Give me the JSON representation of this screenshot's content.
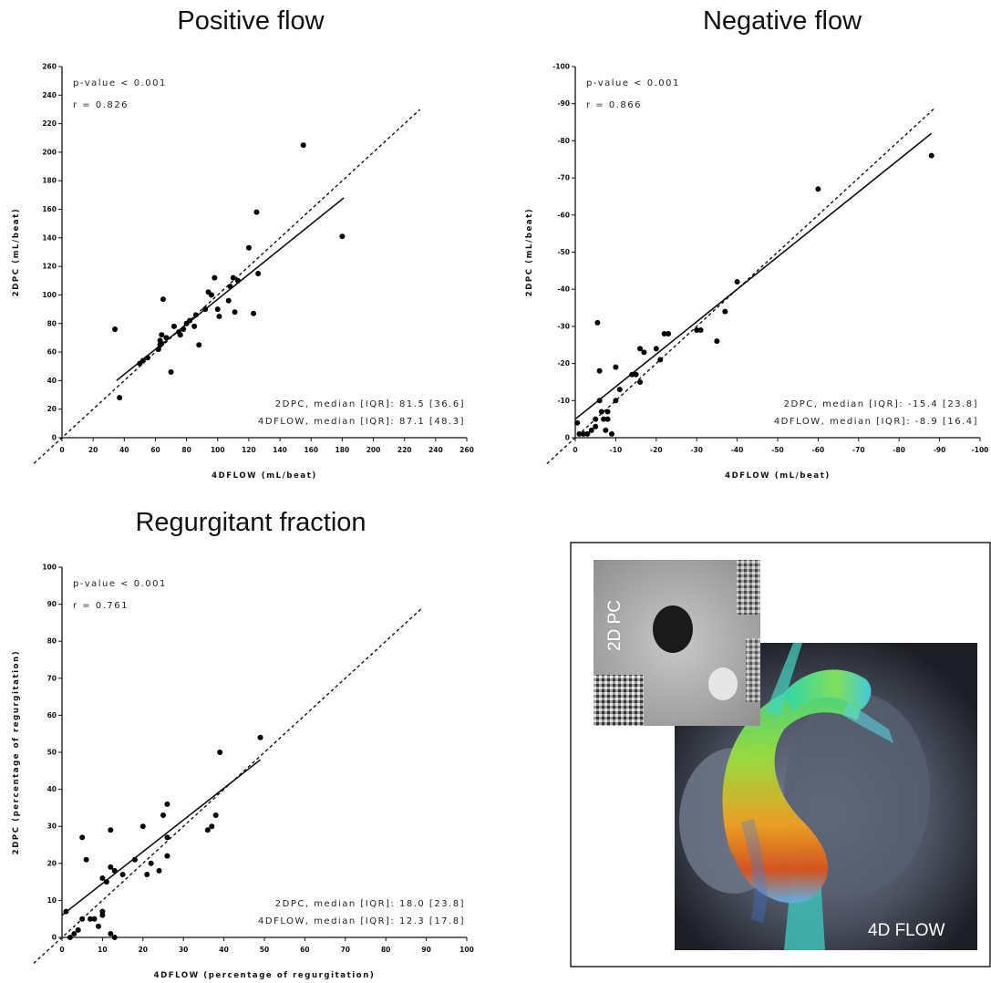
{
  "chart_data": [
    {
      "type": "scatter",
      "title": "Positive flow",
      "xlabel": "4DFLOW (mL/beat)",
      "ylabel": "2DPC (mL/beat)",
      "xlim": [
        0,
        260
      ],
      "ylim": [
        0,
        260
      ],
      "xticks": [
        "0",
        "20",
        "40",
        "60",
        "80",
        "100",
        "120",
        "140",
        "160",
        "180",
        "200",
        "220",
        "240",
        "260"
      ],
      "yticks": [
        "0",
        "20",
        "40",
        "60",
        "80",
        "100",
        "120",
        "140",
        "160",
        "180",
        "200",
        "220",
        "240",
        "260"
      ],
      "annotations": {
        "pvalue": "p-value < 0.001",
        "r": "r = 0.826",
        "median_2dpc": "2DPC, median [IQR]: 81.5 [36.6]",
        "median_4dflow": "4DFLOW, median [IQR]: 87.1 [48.3]"
      },
      "points": [
        [
          34,
          76
        ],
        [
          37,
          28
        ],
        [
          50,
          52
        ],
        [
          52,
          54
        ],
        [
          55,
          56
        ],
        [
          62,
          62
        ],
        [
          63,
          65
        ],
        [
          63,
          68
        ],
        [
          64,
          66
        ],
        [
          64,
          72
        ],
        [
          65,
          97
        ],
        [
          67,
          70
        ],
        [
          70,
          46
        ],
        [
          72,
          78
        ],
        [
          75,
          74
        ],
        [
          76,
          72
        ],
        [
          78,
          76
        ],
        [
          80,
          80
        ],
        [
          82,
          82
        ],
        [
          85,
          78
        ],
        [
          86,
          86
        ],
        [
          88,
          65
        ],
        [
          92,
          90
        ],
        [
          94,
          102
        ],
        [
          96,
          100
        ],
        [
          98,
          112
        ],
        [
          100,
          90
        ],
        [
          101,
          85
        ],
        [
          107,
          96
        ],
        [
          108,
          106
        ],
        [
          110,
          112
        ],
        [
          111,
          88
        ],
        [
          113,
          110
        ],
        [
          120,
          133
        ],
        [
          123,
          87
        ],
        [
          125,
          158
        ],
        [
          126,
          115
        ],
        [
          155,
          205
        ],
        [
          180,
          141
        ]
      ],
      "fit_line": [
        [
          35,
          40
        ],
        [
          181,
          168
        ]
      ],
      "identity_line": [
        [
          -18,
          -18
        ],
        [
          230,
          230
        ]
      ]
    },
    {
      "type": "scatter",
      "title": "Negative flow",
      "xlabel": "4DFLOW (mL/beat)",
      "ylabel": "2DPC (mL/beat)",
      "xlim": [
        0,
        -100
      ],
      "ylim": [
        0,
        -100
      ],
      "xticks": [
        "0",
        "-10",
        "-20",
        "-30",
        "-40",
        "-50",
        "-60",
        "-70",
        "-80",
        "-90",
        "-100"
      ],
      "yticks": [
        "0",
        "-10",
        "-20",
        "-30",
        "-40",
        "-50",
        "-60",
        "-70",
        "-80",
        "-90",
        "-100"
      ],
      "annotations": {
        "pvalue": "p-value < 0.001",
        "r": "r = 0.866",
        "median_2dpc": "2DPC, median [IQR]: -15.4 [23.8]",
        "median_4dflow": "4DFLOW, median [IQR]: -8.9 [16.4]"
      },
      "points": [
        [
          -0.5,
          -4
        ],
        [
          -1,
          -1
        ],
        [
          -2,
          -1
        ],
        [
          -3,
          -1
        ],
        [
          -4,
          -2
        ],
        [
          -5,
          -3
        ],
        [
          -5,
          -5
        ],
        [
          -5.5,
          -31
        ],
        [
          -6,
          -18
        ],
        [
          -6,
          -10
        ],
        [
          -6.5,
          -7
        ],
        [
          -7,
          -5
        ],
        [
          -7.5,
          -2
        ],
        [
          -8,
          -7
        ],
        [
          -8,
          -5
        ],
        [
          -9,
          -1
        ],
        [
          -10,
          -19
        ],
        [
          -10,
          -10
        ],
        [
          -11,
          -13
        ],
        [
          -14,
          -17
        ],
        [
          -15,
          -17
        ],
        [
          -16,
          -15
        ],
        [
          -16,
          -24
        ],
        [
          -17,
          -23
        ],
        [
          -20,
          -24
        ],
        [
          -21,
          -21
        ],
        [
          -22,
          -28
        ],
        [
          -23,
          -28
        ],
        [
          -30,
          -29
        ],
        [
          -31,
          -29
        ],
        [
          -35,
          -26
        ],
        [
          -37,
          -34
        ],
        [
          -40,
          -42
        ],
        [
          -60,
          -67
        ],
        [
          -88,
          -76
        ]
      ],
      "fit_line": [
        [
          0,
          -5
        ],
        [
          -88,
          -82
        ]
      ],
      "identity_line": [
        [
          7,
          7
        ],
        [
          -89,
          -89
        ]
      ]
    },
    {
      "type": "scatter",
      "title": "Regurgitant fraction",
      "xlabel": "4DFLOW (percentage of regurgitation)",
      "ylabel": "2DPC (percentage of regurgitation)",
      "xlim": [
        0,
        100
      ],
      "ylim": [
        0,
        100
      ],
      "xticks": [
        "0",
        "10",
        "20",
        "30",
        "40",
        "50",
        "60",
        "70",
        "80",
        "90",
        "100"
      ],
      "yticks": [
        "0",
        "10",
        "20",
        "30",
        "40",
        "50",
        "60",
        "70",
        "80",
        "90",
        "100"
      ],
      "annotations": {
        "pvalue": "p-value < 0.001",
        "r": "r = 0.761",
        "median_2dpc": "2DPC, median [IQR]: 18.0 [23.8]",
        "median_4dflow": "4DFLOW, median [IQR]: 12.3 [17.8]"
      },
      "points": [
        [
          1,
          7
        ],
        [
          2,
          0
        ],
        [
          3,
          1
        ],
        [
          4,
          2
        ],
        [
          5,
          5
        ],
        [
          5,
          27
        ],
        [
          6,
          21
        ],
        [
          7,
          5
        ],
        [
          8,
          5
        ],
        [
          9,
          3
        ],
        [
          10,
          6
        ],
        [
          10,
          7
        ],
        [
          10,
          16
        ],
        [
          11,
          15
        ],
        [
          12,
          1
        ],
        [
          12,
          29
        ],
        [
          12,
          19
        ],
        [
          13,
          0
        ],
        [
          13,
          18
        ],
        [
          15,
          17
        ],
        [
          18,
          21
        ],
        [
          20,
          30
        ],
        [
          21,
          17
        ],
        [
          22,
          20
        ],
        [
          24,
          18
        ],
        [
          25,
          33
        ],
        [
          26,
          22
        ],
        [
          26,
          27
        ],
        [
          26,
          36
        ],
        [
          36,
          29
        ],
        [
          37,
          30
        ],
        [
          38,
          33
        ],
        [
          39,
          50
        ],
        [
          49,
          54
        ]
      ],
      "fit_line": [
        [
          0,
          6
        ],
        [
          49,
          48
        ]
      ],
      "identity_line": [
        [
          -7,
          -7
        ],
        [
          89,
          89
        ]
      ]
    }
  ],
  "image_panel": {
    "label_2dpc": "2D PC",
    "label_4dflow": "4D FLOW"
  }
}
